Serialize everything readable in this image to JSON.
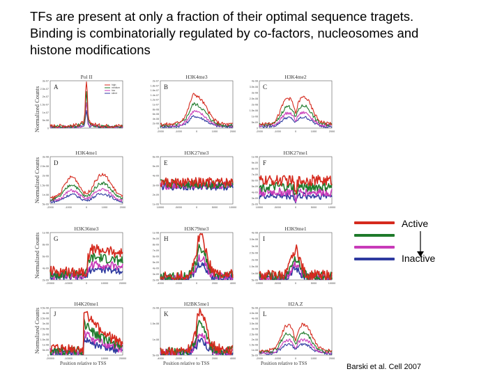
{
  "title": {
    "line1": "TFs are present at only a fraction of their optimal sequence tragets.",
    "line2": "Binding is combinatorially regulated by co-factors, nucleosomes and",
    "line3": "histone modifications"
  },
  "figure": {
    "ylabel": "Normalized Counts",
    "xlabel": "Position relative to TSS",
    "legend": [
      "Active",
      "Inactive"
    ],
    "citation": "Barski et al. Cell 2007",
    "series_colors": [
      "#d52a1e",
      "#1e7a2a",
      "#c83bb8",
      "#2e3aa0"
    ]
  },
  "chart_data": [
    {
      "type": "line",
      "letter": "A",
      "title": "Pol II",
      "yticks": [
        "3e-07",
        "2.5e-07",
        "2e-07",
        "1.5e-07",
        "1e-07",
        "5e-08",
        "0"
      ],
      "xticks": [],
      "profile": "sharp",
      "legend_entries": [
        "high",
        "medium",
        "low",
        "silent"
      ]
    },
    {
      "type": "line",
      "letter": "B",
      "title": "H3K4me3",
      "yticks": [
        "2e-07",
        "1.8e-07",
        "1.6e-07",
        "1.4e-07",
        "1.2e-07",
        "1e-07",
        "8e-08",
        "6e-08",
        "4e-08",
        "2e-08",
        "0"
      ],
      "xticks": [
        "-2000",
        "-1000",
        "0",
        "1000",
        "2000"
      ],
      "profile": "broad"
    },
    {
      "type": "line",
      "letter": "C",
      "title": "H3K4me2",
      "yticks": [
        "4e-08",
        "3.5e-08",
        "3e-08",
        "2.5e-08",
        "2e-08",
        "1.5e-08",
        "1e-08",
        "5e-09",
        "0"
      ],
      "xticks": [
        "-2000",
        "-1000",
        "0",
        "1000",
        "2000"
      ],
      "profile": "bimodal"
    },
    {
      "type": "line",
      "letter": "D",
      "title": "H3K4me1",
      "yticks": [
        "3e-08",
        "2.5e-08",
        "2e-08",
        "1.5e-08",
        "1e-08",
        "5e-09"
      ],
      "xticks": [
        "-2000",
        "-1000",
        "0",
        "1000",
        "2000"
      ],
      "profile": "dip"
    },
    {
      "type": "line",
      "letter": "E",
      "title": "H3K27me3",
      "yticks": [
        "6e-09",
        "5e-09",
        "4e-09",
        "3e-09",
        "2e-09",
        "1e-09"
      ],
      "xticks": [
        "10000",
        "-5000",
        "0",
        "5000",
        "10000"
      ],
      "profile": "flat"
    },
    {
      "type": "line",
      "letter": "F",
      "title": "H3K27me1",
      "yticks": [
        "1e-08",
        "9e-09",
        "8e-09",
        "7e-09",
        "6e-09",
        "5e-09",
        "4e-09",
        "3e-09",
        "2e-09"
      ],
      "xticks": [
        "10000",
        "-5000",
        "0",
        "5000",
        "10000"
      ],
      "profile": "flat_dip"
    },
    {
      "type": "line",
      "letter": "G",
      "title": "H3K36me3",
      "yticks": [
        "1e-08",
        "8e-09",
        "6e-09",
        "4e-09",
        "2e-09"
      ],
      "xticks": [
        "-20000",
        "-10000",
        "0",
        "10000",
        "20000"
      ],
      "profile": "step"
    },
    {
      "type": "line",
      "letter": "H",
      "title": "H3K79me3",
      "yticks": [
        "1e-08",
        "9e-09",
        "8e-09",
        "7e-09",
        "6e-09",
        "5e-09",
        "4e-09",
        "3e-09",
        "2e-09"
      ],
      "xticks": [
        "-4000",
        "-2000",
        "0",
        "2000",
        "4000"
      ],
      "profile": "peak_right"
    },
    {
      "type": "line",
      "letter": "I",
      "title": "H3K9me1",
      "yticks": [
        "4e-08",
        "3.5e-08",
        "3e-08",
        "2.5e-08",
        "2e-08",
        "1.5e-08",
        "1e-08",
        "5e-09"
      ],
      "xticks": [
        "10000",
        "-5000",
        "0",
        "5000",
        "10000"
      ],
      "profile": "peak"
    },
    {
      "type": "line",
      "letter": "J",
      "title": "H4K20me1",
      "yticks": [
        "4.5e-08",
        "4e-08",
        "3.5e-08",
        "3e-08",
        "2.5e-08",
        "2e-08",
        "1.5e-08",
        "1e-08",
        "5e-09",
        "0"
      ],
      "xticks": [
        "-20000",
        "-10000",
        "0",
        "10000",
        "20000"
      ],
      "profile": "step_decay"
    },
    {
      "type": "line",
      "letter": "K",
      "title": "H2BK5me1",
      "yticks": [
        "2e-08",
        "1.5e-08",
        "1e-08",
        "5e-09"
      ],
      "xticks": [
        "-4000",
        "-2000",
        "0",
        "2000",
        "4000"
      ],
      "profile": "peak_right"
    },
    {
      "type": "line",
      "letter": "L",
      "title": "H2A.Z",
      "yticks": [
        "5e-08",
        "4.5e-08",
        "4e-08",
        "3.5e-08",
        "3e-08",
        "2.5e-08",
        "2e-08",
        "1.5e-08",
        "1e-08",
        "5e-09"
      ],
      "xticks": [
        "-2000",
        "-1000",
        "0",
        "1000",
        "2000"
      ],
      "profile": "bimodal"
    }
  ]
}
